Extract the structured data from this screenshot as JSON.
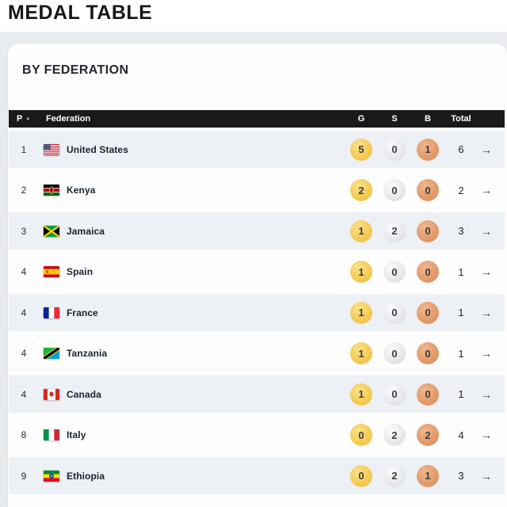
{
  "page": {
    "title": "MEDAL TABLE"
  },
  "card": {
    "heading": "BY FEDERATION"
  },
  "icons": {
    "sort_asc": "▲",
    "row_link": "→"
  },
  "colors": {
    "header_bg": "#1A1A1A",
    "row_alt_bg": "#EDF0F4",
    "band_bg": "#E9ECEF",
    "gold": "#F5CB55",
    "silver": "#E9E9EB",
    "bronze": "#E39B6B"
  },
  "table": {
    "headers": {
      "pos": "P",
      "federation": "Federation",
      "gold": "G",
      "silver": "S",
      "bronze": "B",
      "total": "Total"
    },
    "rows": [
      {
        "pos": "1",
        "country": "United States",
        "flag": "united-states",
        "gold": "5",
        "silver": "0",
        "bronze": "1",
        "total": "6"
      },
      {
        "pos": "2",
        "country": "Kenya",
        "flag": "kenya",
        "gold": "2",
        "silver": "0",
        "bronze": "0",
        "total": "2"
      },
      {
        "pos": "3",
        "country": "Jamaica",
        "flag": "jamaica",
        "gold": "1",
        "silver": "2",
        "bronze": "0",
        "total": "3"
      },
      {
        "pos": "4",
        "country": "Spain",
        "flag": "spain",
        "gold": "1",
        "silver": "0",
        "bronze": "0",
        "total": "1"
      },
      {
        "pos": "4",
        "country": "France",
        "flag": "france",
        "gold": "1",
        "silver": "0",
        "bronze": "0",
        "total": "1"
      },
      {
        "pos": "4",
        "country": "Tanzania",
        "flag": "tanzania",
        "gold": "1",
        "silver": "0",
        "bronze": "0",
        "total": "1"
      },
      {
        "pos": "4",
        "country": "Canada",
        "flag": "canada",
        "gold": "1",
        "silver": "0",
        "bronze": "0",
        "total": "1"
      },
      {
        "pos": "8",
        "country": "Italy",
        "flag": "italy",
        "gold": "0",
        "silver": "2",
        "bronze": "2",
        "total": "4"
      },
      {
        "pos": "9",
        "country": "Ethiopia",
        "flag": "ethiopia",
        "gold": "0",
        "silver": "2",
        "bronze": "1",
        "total": "3"
      }
    ]
  }
}
